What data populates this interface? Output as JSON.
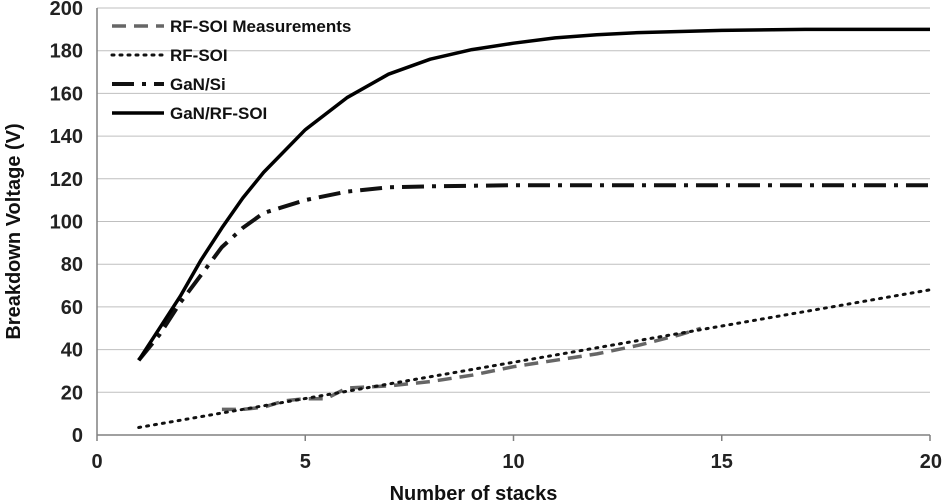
{
  "chart_data": {
    "type": "line",
    "xlabel": "Number of stacks",
    "ylabel": "Breakdown Voltage (V)",
    "xlim": [
      0,
      20
    ],
    "ylim": [
      0,
      200
    ],
    "x_ticks": [
      "0",
      "5",
      "10",
      "15",
      "20"
    ],
    "y_ticks": [
      "0",
      "20",
      "40",
      "60",
      "80",
      "100",
      "120",
      "140",
      "160",
      "180",
      "200"
    ],
    "grid": "horizontal",
    "legend_position": "top-left",
    "series": [
      {
        "name": "RF-SOI Measurements",
        "style": "dashed",
        "color": "#666666",
        "x": [
          3,
          3.5,
          4,
          4.5,
          5,
          5.5,
          6,
          7,
          8,
          9,
          10,
          11,
          12,
          13,
          14,
          14.5
        ],
        "y": [
          12,
          12,
          13,
          16,
          17,
          17,
          22,
          23,
          25,
          28,
          32,
          35,
          38,
          42,
          47,
          50
        ]
      },
      {
        "name": "RF-SOI",
        "style": "dotted",
        "color": "#111111",
        "x": [
          1,
          20
        ],
        "y": [
          3.5,
          68
        ]
      },
      {
        "name": "GaN/Si",
        "style": "dash-dot",
        "color": "#111111",
        "x": [
          1,
          1.5,
          2,
          2.5,
          3,
          3.5,
          4,
          5,
          6,
          7,
          8,
          10,
          12,
          15,
          20
        ],
        "y": [
          35,
          47,
          62,
          75,
          88,
          97,
          104,
          110,
          114,
          116,
          116.5,
          117,
          117,
          117,
          117
        ]
      },
      {
        "name": "GaN/RF-SOI",
        "style": "solid",
        "color": "#000000",
        "x": [
          1,
          1.5,
          2,
          2.5,
          3,
          3.5,
          4,
          5,
          6,
          7,
          8,
          9,
          10,
          11,
          12,
          13,
          15,
          17,
          20
        ],
        "y": [
          35,
          50,
          65,
          82,
          97,
          111,
          123,
          143,
          158,
          169,
          176,
          180.5,
          183.5,
          186,
          187.5,
          188.5,
          189.5,
          190,
          190
        ]
      }
    ]
  }
}
